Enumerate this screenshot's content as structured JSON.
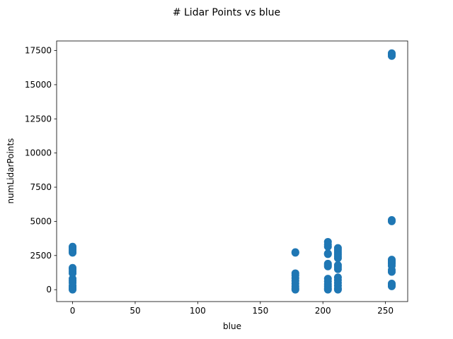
{
  "chart_data": {
    "type": "scatter",
    "title": "# Lidar Points vs blue",
    "xlabel": "blue",
    "ylabel": "numLidarPoints",
    "xlim": [
      -12.75,
      267.75
    ],
    "ylim": [
      -870,
      18200
    ],
    "xticks": [
      0,
      50,
      100,
      150,
      200,
      250
    ],
    "yticks": [
      0,
      2500,
      5000,
      7500,
      10000,
      12500,
      15000,
      17500
    ],
    "xtick_labels": [
      "0",
      "50",
      "100",
      "150",
      "200",
      "250"
    ],
    "ytick_labels": [
      "0",
      "2500",
      "5000",
      "7500",
      "10000",
      "12500",
      "15000",
      "17500"
    ],
    "grid": false,
    "marker_color": "#1f77b4",
    "series": [
      {
        "points": [
          [
            0,
            0
          ],
          [
            0,
            100
          ],
          [
            0,
            200
          ],
          [
            0,
            300
          ],
          [
            0,
            500
          ],
          [
            0,
            650
          ],
          [
            0,
            800
          ],
          [
            0,
            1200
          ],
          [
            0,
            1350
          ],
          [
            0,
            1500
          ],
          [
            0,
            1600
          ],
          [
            0,
            2700
          ],
          [
            0,
            2800
          ],
          [
            0,
            2900
          ],
          [
            0,
            3000
          ],
          [
            0,
            3100
          ],
          [
            0,
            3150
          ],
          [
            178,
            0
          ],
          [
            178,
            100
          ],
          [
            178,
            250
          ],
          [
            178,
            450
          ],
          [
            178,
            650
          ],
          [
            178,
            850
          ],
          [
            178,
            1050
          ],
          [
            178,
            1200
          ],
          [
            178,
            2700
          ],
          [
            178,
            2750
          ],
          [
            204,
            0
          ],
          [
            204,
            100
          ],
          [
            204,
            250
          ],
          [
            204,
            400
          ],
          [
            204,
            600
          ],
          [
            204,
            800
          ],
          [
            204,
            1700
          ],
          [
            204,
            1800
          ],
          [
            204,
            1900
          ],
          [
            204,
            2600
          ],
          [
            204,
            2650
          ],
          [
            204,
            3150
          ],
          [
            204,
            3300
          ],
          [
            204,
            3500
          ],
          [
            212,
            0
          ],
          [
            212,
            100
          ],
          [
            212,
            300
          ],
          [
            212,
            500
          ],
          [
            212,
            700
          ],
          [
            212,
            900
          ],
          [
            212,
            1500
          ],
          [
            212,
            1650
          ],
          [
            212,
            1800
          ],
          [
            212,
            2300
          ],
          [
            212,
            2450
          ],
          [
            212,
            2600
          ],
          [
            212,
            2750
          ],
          [
            212,
            2900
          ],
          [
            212,
            3050
          ],
          [
            255,
            250
          ],
          [
            255,
            350
          ],
          [
            255,
            450
          ],
          [
            255,
            1300
          ],
          [
            255,
            1450
          ],
          [
            255,
            1750
          ],
          [
            255,
            1900
          ],
          [
            255,
            2000
          ],
          [
            255,
            2100
          ],
          [
            255,
            2200
          ],
          [
            255,
            5000
          ],
          [
            255,
            5100
          ],
          [
            255,
            17100
          ],
          [
            255,
            17200
          ],
          [
            255,
            17300
          ]
        ]
      }
    ]
  }
}
